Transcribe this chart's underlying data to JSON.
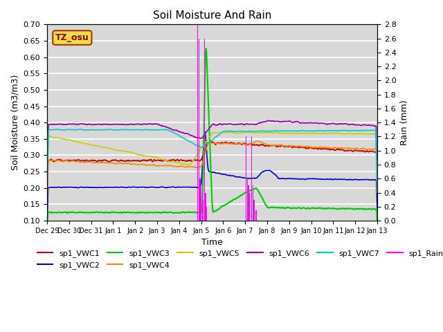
{
  "title": "Soil Moisture And Rain",
  "ylabel_left": "Soil Moisture (m3/m3)",
  "ylabel_right": "Rain (mm)",
  "xlabel": "Time",
  "ylim_left": [
    0.1,
    0.7
  ],
  "ylim_right": [
    0.0,
    2.8
  ],
  "background_color": "#d8d8d8",
  "annotation_text": "TZ_osu",
  "annotation_bg": "#f0e040",
  "annotation_border": "#aa3300",
  "x_tick_labels": [
    "Dec 29",
    "Dec 30",
    "Dec 31",
    "Jan 1",
    "Jan 2",
    "Jan 3",
    "Jan 4",
    "Jan 5",
    "Jan 6",
    "Jan 7",
    "Jan 8",
    "Jan 9",
    "Jan 10",
    "Jan 11",
    "Jan 12",
    "Jan 13"
  ],
  "colors": {
    "VWC1": "#cc0000",
    "VWC2": "#0000cc",
    "VWC3": "#00cc00",
    "VWC4": "#ff8800",
    "VWC5": "#cccc00",
    "VWC6": "#9900aa",
    "VWC7": "#00cccc",
    "Rain": "#ff00ff"
  },
  "legend_entries": [
    "sp1_VWC1",
    "sp1_VWC2",
    "sp1_VWC3",
    "sp1_VWC4",
    "sp1_VWC5",
    "sp1_VWC6",
    "sp1_VWC7",
    "sp1_Rain"
  ]
}
